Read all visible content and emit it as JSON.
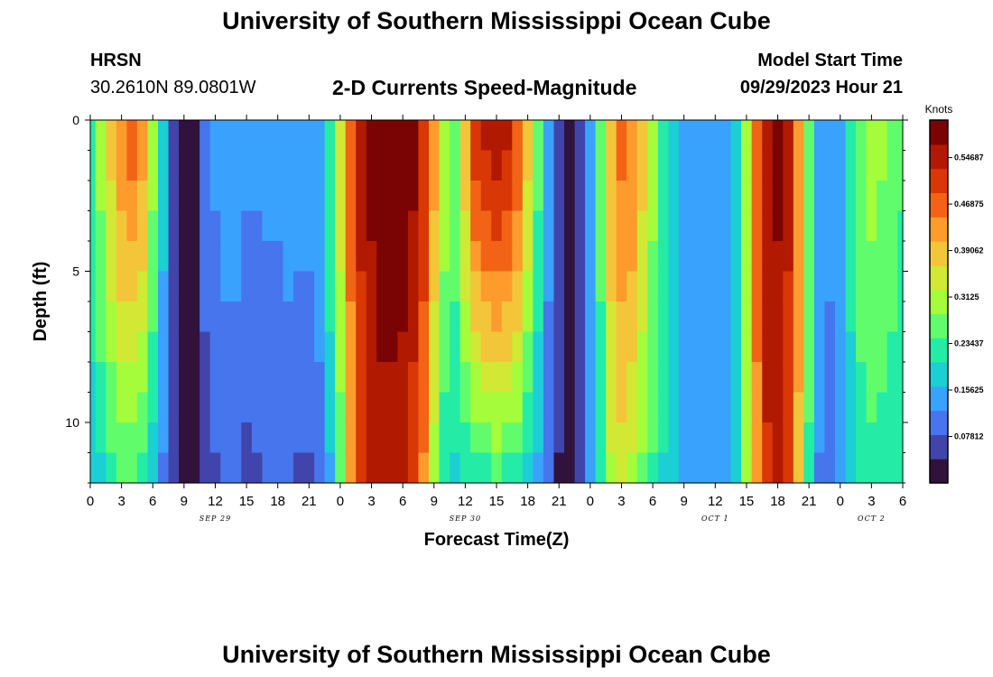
{
  "header": {
    "title": "University of Southern Mississippi Ocean Cube",
    "station_name": "HRSN",
    "station_coords": "30.2610N  89.0801W",
    "product": "2-D Currents Speed-Magnitude",
    "model_label": "Model Start Time",
    "model_time": "09/29/2023 Hour 21"
  },
  "footer": {
    "title": "University of Southern Mississippi Ocean Cube"
  },
  "chart_data": {
    "type": "heatmap",
    "title": "2-D Currents Speed-Magnitude",
    "xlabel": "Forecast Time(Z)",
    "ylabel": "Depth (ft)",
    "ylim": [
      0,
      12
    ],
    "y_ticks": [
      "0",
      "5",
      "10"
    ],
    "x_range_hours": [
      0,
      78
    ],
    "x_tick_labels": [
      "0",
      "3",
      "6",
      "9",
      "12",
      "15",
      "18",
      "21",
      "0",
      "3",
      "6",
      "9",
      "12",
      "15",
      "18",
      "21",
      "0",
      "3",
      "6",
      "9",
      "12",
      "15",
      "18",
      "21",
      "0",
      "3",
      "6"
    ],
    "date_labels": [
      {
        "label": "SEP 29",
        "hour": 12
      },
      {
        "label": "SEP 30",
        "hour": 36
      },
      {
        "label": "OCT 1",
        "hour": 60
      },
      {
        "label": "OCT 2",
        "hour": 75
      }
    ],
    "colorbar": {
      "label": "Knots",
      "min": 0.0,
      "max": 0.61,
      "ticks": [
        "0.07812",
        "0.15625",
        "0.23437",
        "0.3125",
        "0.39062",
        "0.46875",
        "0.54687"
      ]
    },
    "colors": [
      "#30123b",
      "#4145ab",
      "#4675ed",
      "#39a2fc",
      "#1bcfd4",
      "#24eca6",
      "#61fc6c",
      "#a4fc3b",
      "#d1e834",
      "#f3c63a",
      "#fe9b2d",
      "#f36315",
      "#d93806",
      "#b11901",
      "#7a0403"
    ],
    "depth_rows": 12,
    "hour_step": 1,
    "surface_profile_knots": [
      0.24,
      0.3,
      0.38,
      0.44,
      0.46,
      0.42,
      0.3,
      0.18,
      0.08,
      0.03,
      0.04,
      0.1,
      0.13,
      0.14,
      0.14,
      0.13,
      0.13,
      0.13,
      0.13,
      0.14,
      0.14,
      0.14,
      0.16,
      0.24,
      0.35,
      0.47,
      0.54,
      0.58,
      0.6,
      0.6,
      0.6,
      0.58,
      0.52,
      0.42,
      0.32,
      0.27,
      0.4,
      0.5,
      0.54,
      0.55,
      0.53,
      0.48,
      0.38,
      0.26,
      0.14,
      0.06,
      0.01,
      0.06,
      0.15,
      0.26,
      0.4,
      0.46,
      0.44,
      0.38,
      0.3,
      0.24,
      0.2,
      0.16,
      0.14,
      0.14,
      0.14,
      0.15,
      0.2,
      0.32,
      0.46,
      0.56,
      0.58,
      0.54,
      0.42,
      0.26,
      0.14,
      0.13,
      0.15,
      0.22,
      0.28,
      0.3,
      0.29,
      0.27,
      0.25
    ],
    "bottom_profile_knots": [
      0.18,
      0.2,
      0.23,
      0.25,
      0.25,
      0.23,
      0.19,
      0.12,
      0.06,
      0.02,
      0.03,
      0.06,
      0.08,
      0.1,
      0.09,
      0.07,
      0.08,
      0.1,
      0.1,
      0.09,
      0.08,
      0.08,
      0.1,
      0.16,
      0.26,
      0.42,
      0.5,
      0.54,
      0.55,
      0.55,
      0.54,
      0.5,
      0.44,
      0.3,
      0.22,
      0.2,
      0.21,
      0.23,
      0.24,
      0.25,
      0.24,
      0.23,
      0.2,
      0.15,
      0.09,
      0.04,
      0.01,
      0.05,
      0.13,
      0.22,
      0.32,
      0.34,
      0.32,
      0.28,
      0.24,
      0.2,
      0.17,
      0.14,
      0.13,
      0.13,
      0.14,
      0.15,
      0.2,
      0.3,
      0.44,
      0.52,
      0.53,
      0.5,
      0.4,
      0.24,
      0.12,
      0.11,
      0.13,
      0.19,
      0.22,
      0.23,
      0.23,
      0.22,
      0.21
    ]
  }
}
